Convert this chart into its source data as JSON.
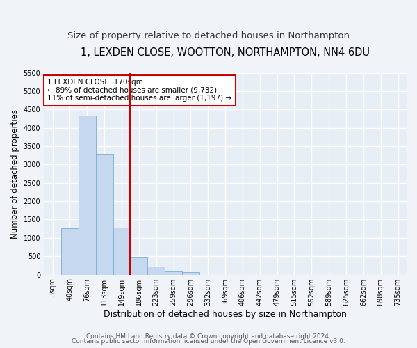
{
  "title": "1, LEXDEN CLOSE, WOOTTON, NORTHAMPTON, NN4 6DU",
  "subtitle": "Size of property relative to detached houses in Northampton",
  "xlabel": "Distribution of detached houses by size in Northampton",
  "ylabel": "Number of detached properties",
  "categories": [
    "3sqm",
    "40sqm",
    "76sqm",
    "113sqm",
    "149sqm",
    "186sqm",
    "223sqm",
    "259sqm",
    "296sqm",
    "332sqm",
    "369sqm",
    "406sqm",
    "442sqm",
    "479sqm",
    "515sqm",
    "552sqm",
    "589sqm",
    "625sqm",
    "662sqm",
    "698sqm",
    "735sqm"
  ],
  "values": [
    0,
    1270,
    4330,
    3300,
    1280,
    490,
    220,
    90,
    60,
    0,
    0,
    0,
    0,
    0,
    0,
    0,
    0,
    0,
    0,
    0,
    0
  ],
  "bar_color": "#c5d8f0",
  "bar_edge_color": "#7aadd4",
  "vline_color": "#cc0000",
  "annotation_text": "1 LEXDEN CLOSE: 170sqm\n← 89% of detached houses are smaller (9,732)\n11% of semi-detached houses are larger (1,197) →",
  "annotation_box_color": "#ffffff",
  "annotation_box_edge": "#cc0000",
  "ylim": [
    0,
    5500
  ],
  "yticks": [
    0,
    500,
    1000,
    1500,
    2000,
    2500,
    3000,
    3500,
    4000,
    4500,
    5000,
    5500
  ],
  "background_color": "#e8eef5",
  "grid_color": "#ffffff",
  "fig_background": "#f0f4f8",
  "footer_line1": "Contains HM Land Registry data © Crown copyright and database right 2024.",
  "footer_line2": "Contains public sector information licensed under the Open Government Licence v3.0.",
  "title_fontsize": 10.5,
  "subtitle_fontsize": 9.5,
  "xlabel_fontsize": 9,
  "ylabel_fontsize": 8.5,
  "tick_fontsize": 7,
  "annotation_fontsize": 7.5,
  "footer_fontsize": 6.5
}
